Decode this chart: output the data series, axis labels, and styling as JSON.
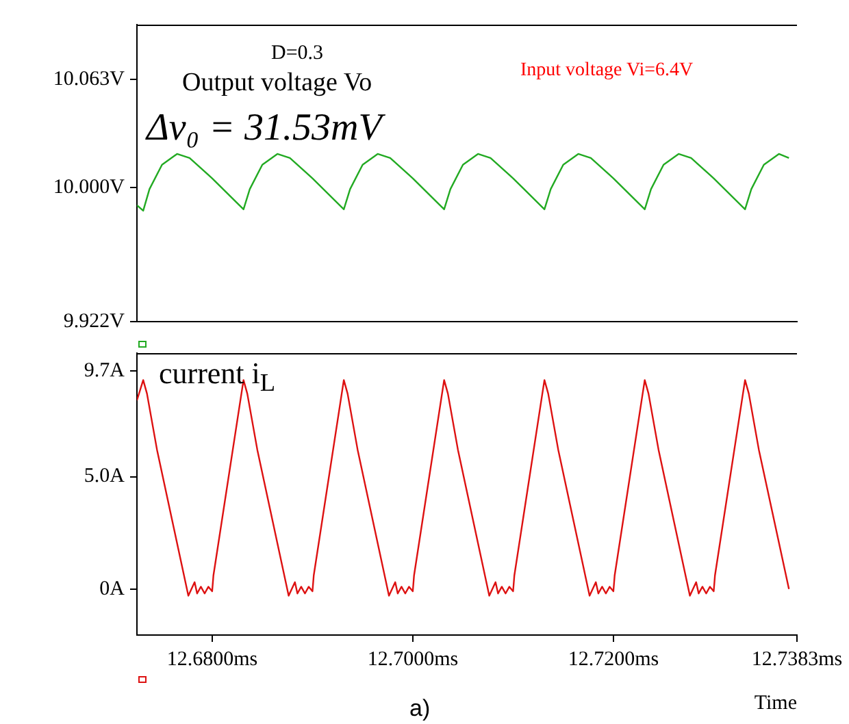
{
  "chart_data": [
    {
      "type": "line",
      "annotations": [
        "D=0.3",
        "Output voltage Vo",
        "Δv₀ = 31.53mV",
        "Input voltage Vi=6.4V"
      ],
      "xlim": [
        12.6725,
        12.7383
      ],
      "ylim": [
        9.922,
        10.095
      ],
      "yticks": [
        {
          "value": 10.063,
          "label": "10.063V"
        },
        {
          "value": 10.0,
          "label": "10.000V"
        },
        {
          "value": 9.922,
          "label": "9.922V"
        }
      ],
      "tick_labels": "y",
      "grid": false,
      "legend": false,
      "marker": "none",
      "line_style": "solid",
      "series": [
        {
          "color": "#22aa22",
          "x": [
            12.6725,
            12.673125,
            12.67375,
            12.675,
            12.6765,
            12.67775,
            12.68,
            12.683125,
            12.68375,
            12.685,
            12.6865,
            12.68775,
            12.69,
            12.693125,
            12.69375,
            12.695,
            12.6965,
            12.69775,
            12.7,
            12.703125,
            12.70375,
            12.705,
            12.7065,
            12.70775,
            12.71,
            12.713125,
            12.71375,
            12.715,
            12.7165,
            12.71775,
            12.72,
            12.723125,
            12.72375,
            12.725,
            12.7265,
            12.72775,
            12.73,
            12.733125,
            12.73375,
            12.735,
            12.7365,
            12.7375
          ],
          "values": [
            9.9898,
            9.9866,
            9.9992,
            10.0134,
            10.0197,
            10.0173,
            10.0055,
            9.9874,
            9.9992,
            10.0134,
            10.0197,
            10.0173,
            10.0055,
            9.9874,
            9.9992,
            10.0134,
            10.0197,
            10.0173,
            10.0055,
            9.9874,
            9.9992,
            10.0134,
            10.0197,
            10.0173,
            10.0055,
            9.9874,
            9.9992,
            10.0134,
            10.0197,
            10.0173,
            10.0055,
            9.9874,
            9.9992,
            10.0134,
            10.0197,
            10.0173,
            10.0055,
            9.9874,
            9.9992,
            10.0134,
            10.0197,
            10.0173
          ]
        }
      ]
    },
    {
      "type": "line",
      "xlabel": "Time",
      "annotations": [
        "current i$_{L}$",
        "a)"
      ],
      "xlim": [
        12.6725,
        12.7383
      ],
      "ylim": [
        -2.05,
        10.5
      ],
      "xticks": [
        {
          "value": 12.68,
          "label": "12.6800ms"
        },
        {
          "value": 12.7,
          "label": "12.7000ms"
        },
        {
          "value": 12.72,
          "label": "12.7200ms"
        },
        {
          "value": 12.7383,
          "label": "12.7383ms"
        }
      ],
      "yticks": [
        {
          "value": 9.7,
          "label": "9.7A"
        },
        {
          "value": 5.0,
          "label": "5.0A"
        },
        {
          "value": 0,
          "label": "0A"
        }
      ],
      "grid": false,
      "legend": false,
      "marker": "none",
      "line_style": "solid",
      "series": [
        {
          "color": "#dd1111",
          "x": [
            12.6725,
            12.673125,
            12.6735,
            12.6745,
            12.677625,
            12.67825,
            12.6785,
            12.678875,
            12.67925,
            12.679625,
            12.68,
            12.680125,
            12.683125,
            12.6835,
            12.6845,
            12.687625,
            12.68825,
            12.6885,
            12.688875,
            12.68925,
            12.689625,
            12.69,
            12.690125,
            12.693125,
            12.6935,
            12.6945,
            12.697625,
            12.69825,
            12.6985,
            12.698875,
            12.69925,
            12.699625,
            12.7,
            12.700125,
            12.703125,
            12.7035,
            12.7045,
            12.707625,
            12.70825,
            12.7085,
            12.708875,
            12.70925,
            12.709625,
            12.71,
            12.710125,
            12.713125,
            12.7135,
            12.7145,
            12.717625,
            12.71825,
            12.7185,
            12.718875,
            12.71925,
            12.719625,
            12.72,
            12.720125,
            12.723125,
            12.7235,
            12.7245,
            12.727625,
            12.72825,
            12.7285,
            12.728875,
            12.72925,
            12.729625,
            12.73,
            12.730125,
            12.733125,
            12.7335,
            12.7345,
            12.7375
          ],
          "values": [
            8.4,
            9.3,
            8.7,
            6.2,
            -0.3,
            0.3,
            -0.2,
            0.1,
            -0.2,
            0.1,
            -0.1,
            0.6,
            9.3,
            8.7,
            6.2,
            -0.3,
            0.3,
            -0.2,
            0.1,
            -0.2,
            0.1,
            -0.1,
            0.6,
            9.3,
            8.7,
            6.2,
            -0.3,
            0.3,
            -0.2,
            0.1,
            -0.2,
            0.1,
            -0.1,
            0.6,
            9.3,
            8.7,
            6.2,
            -0.3,
            0.3,
            -0.2,
            0.1,
            -0.2,
            0.1,
            -0.1,
            0.6,
            9.3,
            8.7,
            6.2,
            -0.3,
            0.3,
            -0.2,
            0.1,
            -0.2,
            0.1,
            -0.1,
            0.6,
            9.3,
            8.7,
            6.2,
            -0.3,
            0.3,
            -0.2,
            0.1,
            -0.2,
            0.1,
            -0.1,
            0.6,
            9.3,
            8.7,
            6.2,
            0.0
          ]
        }
      ]
    }
  ]
}
